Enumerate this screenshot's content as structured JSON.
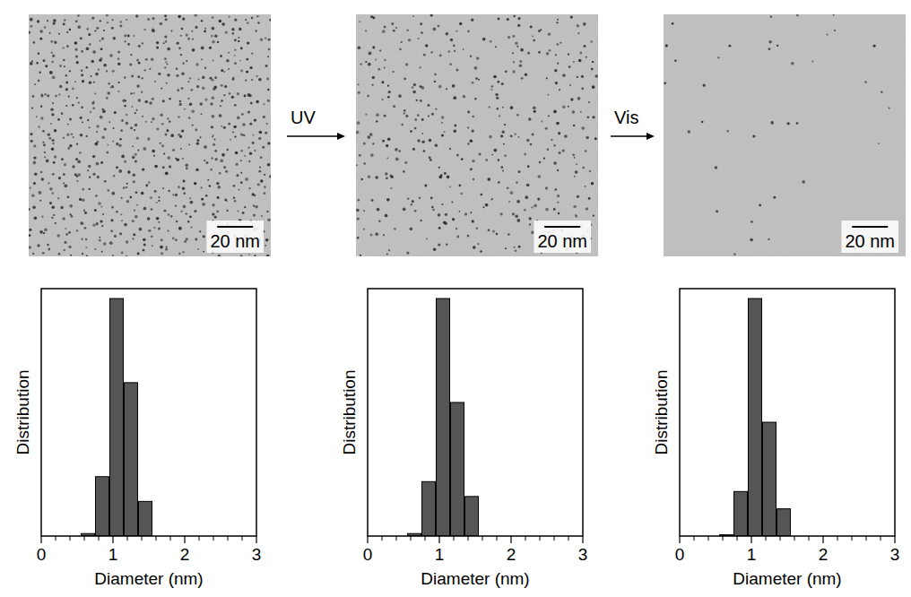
{
  "chart_data": [
    {
      "type": "histogram",
      "x_label": "Diameter (nm)",
      "y_label": "Distribution",
      "bins": [
        0.55,
        0.75,
        0.95,
        1.15,
        1.35,
        1.55
      ],
      "values": [
        1,
        24,
        96,
        62,
        14
      ],
      "color": "#555555",
      "xlim": [
        0,
        3
      ],
      "xticks": [
        0,
        1,
        2,
        3
      ],
      "ylim": [
        0,
        100
      ],
      "tick_labels": "x"
    },
    {
      "type": "histogram",
      "x_label": "Diameter (nm)",
      "y_label": "Distribution",
      "bins": [
        0.55,
        0.75,
        0.95,
        1.15,
        1.35,
        1.55
      ],
      "values": [
        1,
        22,
        96,
        54,
        16
      ],
      "color": "#555555",
      "xlim": [
        0,
        3
      ],
      "xticks": [
        0,
        1,
        2,
        3
      ],
      "ylim": [
        0,
        100
      ],
      "tick_labels": "x"
    },
    {
      "type": "histogram",
      "x_label": "Diameter (nm)",
      "y_label": "Distribution",
      "bins": [
        0.55,
        0.75,
        0.95,
        1.15,
        1.35,
        1.55
      ],
      "values": [
        0.5,
        18,
        96,
        46,
        11
      ],
      "color": "#555555",
      "xlim": [
        0,
        3
      ],
      "xticks": [
        0,
        1,
        2,
        3
      ],
      "ylim": [
        0,
        100
      ],
      "tick_labels": "x"
    }
  ],
  "arrows": [
    {
      "label": "UV"
    },
    {
      "label": "Vis"
    }
  ],
  "images": [
    {
      "scale_bar": "20 nm"
    },
    {
      "scale_bar": "20 nm"
    },
    {
      "scale_bar": "20 nm"
    }
  ]
}
